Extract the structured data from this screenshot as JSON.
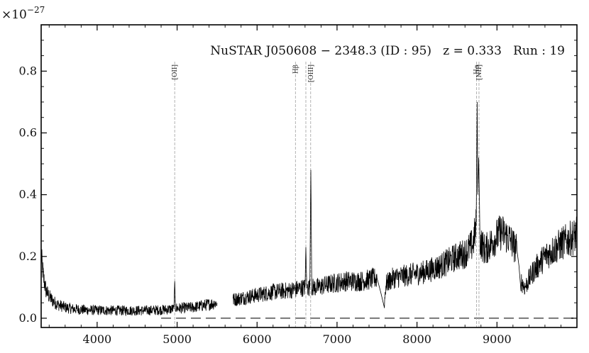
{
  "chart_data": {
    "type": "line",
    "title": "NuSTAR J050608 − 2348.3 (ID : 95)   z = 0.333   Run : 19",
    "xlabel": "",
    "ylabel": "",
    "y_multiplier": "×10",
    "y_multiplier_exponent": "−27",
    "xlim": [
      3300,
      10000
    ],
    "ylim": [
      -0.03,
      0.95
    ],
    "x_ticks": [
      4000,
      5000,
      6000,
      7000,
      8000,
      9000
    ],
    "x_tick_labels": [
      "4000",
      "5000",
      "6000",
      "7000",
      "8000",
      "9000"
    ],
    "y_ticks": [
      0.0,
      0.2,
      0.4,
      0.6,
      0.8
    ],
    "y_tick_labels": [
      "0.0",
      "0.2",
      "0.4",
      "0.6",
      "0.8"
    ],
    "grid": false,
    "legend": "none",
    "zero_line": {
      "y": 0.0,
      "style": "dashed",
      "color": "#777777",
      "x_range": [
        4800,
        10000
      ]
    },
    "emission_lines": [
      {
        "label": "[OII]",
        "x": 4970
      },
      {
        "label": "Hβ",
        "x": 6480
      },
      {
        "label": "",
        "x": 6610
      },
      {
        "label": "[OIII]",
        "x": 6670
      },
      {
        "label": "Hα",
        "x": 8745
      },
      {
        "label": "[NII]",
        "x": 8775
      }
    ],
    "series": [
      {
        "color": "#000000",
        "segments": [
          {
            "x": [
              3300,
              3330,
              3360,
              3400,
              3450,
              3500,
              3600,
              3700,
              3800,
              3900,
              4000,
              4200,
              4400,
              4600,
              4800,
              4960,
              4970,
              4980,
              5000,
              5200,
              5400,
              5500
            ],
            "y": [
              0.2,
              0.13,
              0.09,
              0.07,
              0.055,
              0.045,
              0.035,
              0.03,
              0.028,
              0.026,
              0.026,
              0.025,
              0.025,
              0.025,
              0.027,
              0.03,
              0.12,
              0.035,
              0.032,
              0.035,
              0.045,
              0.05
            ]
          },
          {
            "x": [
              5700,
              5800,
              6000,
              6200,
              6400,
              6500,
              6600,
              6610,
              6620,
              6660,
              6672,
              6685,
              6750,
              6900,
              7100,
              7300,
              7500,
              7590,
              7610,
              7700,
              7900,
              8100,
              8300,
              8500,
              8600,
              8700,
              8740,
              8752,
              8760,
              8772,
              8790,
              8850,
              8950,
              9050,
              9150,
              9250,
              9300,
              9350,
              9450,
              9600,
              9800,
              10000
            ],
            "y": [
              0.06,
              0.065,
              0.075,
              0.085,
              0.09,
              0.095,
              0.1,
              0.23,
              0.1,
              0.1,
              0.48,
              0.1,
              0.1,
              0.11,
              0.12,
              0.12,
              0.13,
              0.04,
              0.11,
              0.13,
              0.14,
              0.15,
              0.17,
              0.2,
              0.21,
              0.24,
              0.3,
              0.7,
              0.4,
              0.52,
              0.25,
              0.22,
              0.25,
              0.28,
              0.26,
              0.22,
              0.12,
              0.1,
              0.15,
              0.2,
              0.24,
              0.27
            ]
          }
        ]
      }
    ]
  }
}
